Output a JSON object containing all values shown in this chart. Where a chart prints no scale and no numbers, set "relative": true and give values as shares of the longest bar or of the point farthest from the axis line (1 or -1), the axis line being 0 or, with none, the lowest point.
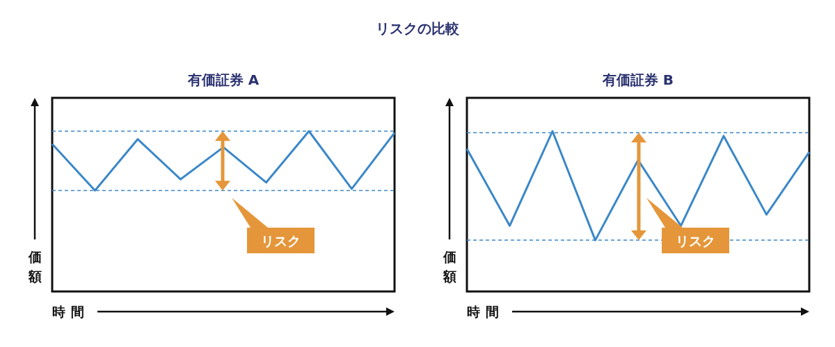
{
  "chart_data": [
    {
      "type": "line",
      "title": "有価証券 A",
      "annotations": [
        "リスクの比較",
        "リスク"
      ],
      "xlabel": "時間",
      "ylabel": "価額",
      "relative": true,
      "categories": [
        null,
        null,
        null,
        null,
        null,
        null,
        null,
        null,
        null
      ],
      "series": [
        {
          "color": "#3a87c8",
          "values": [
            0.92,
            0.63,
            0.95,
            0.7,
            0.9,
            0.68,
            1,
            0.64,
            0.99
          ]
        }
      ],
      "ref_lines": [
        {
          "axis": "y",
          "value": 1,
          "color": "#3a87c8",
          "line_style": "dashed"
        },
        {
          "axis": "y",
          "value": 0.63,
          "color": "#3a87c8",
          "line_style": "dashed"
        }
      ]
    },
    {
      "type": "line",
      "title": "有価証券 B",
      "annotations": [
        "リスク"
      ],
      "xlabel": "時間",
      "ylabel": "価額",
      "relative": true,
      "categories": [
        null,
        null,
        null,
        null,
        null,
        null,
        null,
        null,
        null
      ],
      "series": [
        {
          "color": "#3a87c8",
          "values": [
            0.89,
            0.41,
            1,
            0.32,
            0.82,
            0.41,
            0.97,
            0.48,
            0.87
          ]
        }
      ],
      "ref_lines": [
        {
          "axis": "y",
          "value": 0.99,
          "color": "#3a87c8",
          "line_style": "dashed"
        },
        {
          "axis": "y",
          "value": 0.32,
          "color": "#3a87c8",
          "line_style": "dashed"
        }
      ]
    }
  ]
}
